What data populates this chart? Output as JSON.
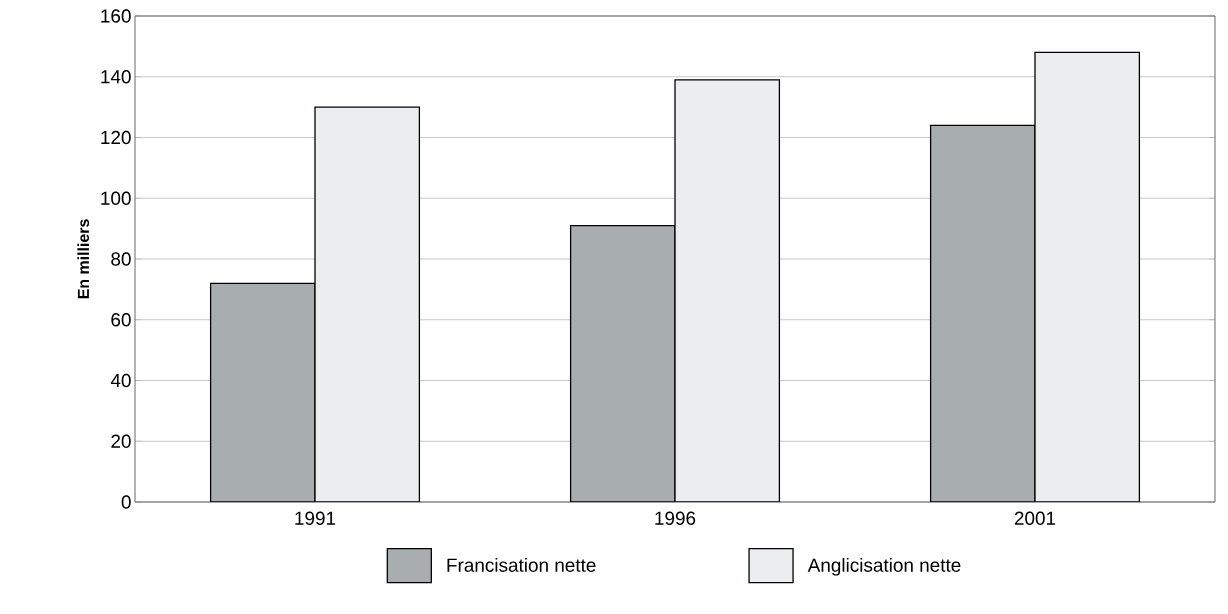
{
  "chart_data": {
    "type": "bar",
    "ylabel": "En milliers",
    "categories": [
      "1991",
      "1996",
      "2001"
    ],
    "series": [
      {
        "name": "Francisation nette",
        "color": "#a8aeb0",
        "values": [
          72,
          91,
          124
        ]
      },
      {
        "name": "Anglicisation nette",
        "color": "#eaeeef",
        "values": [
          130,
          139,
          148
        ]
      }
    ],
    "ylim": [
      0,
      160
    ],
    "yticks": [
      0,
      20,
      40,
      60,
      80,
      100,
      120,
      140,
      160
    ],
    "grid": "y",
    "legend": "bottom"
  }
}
